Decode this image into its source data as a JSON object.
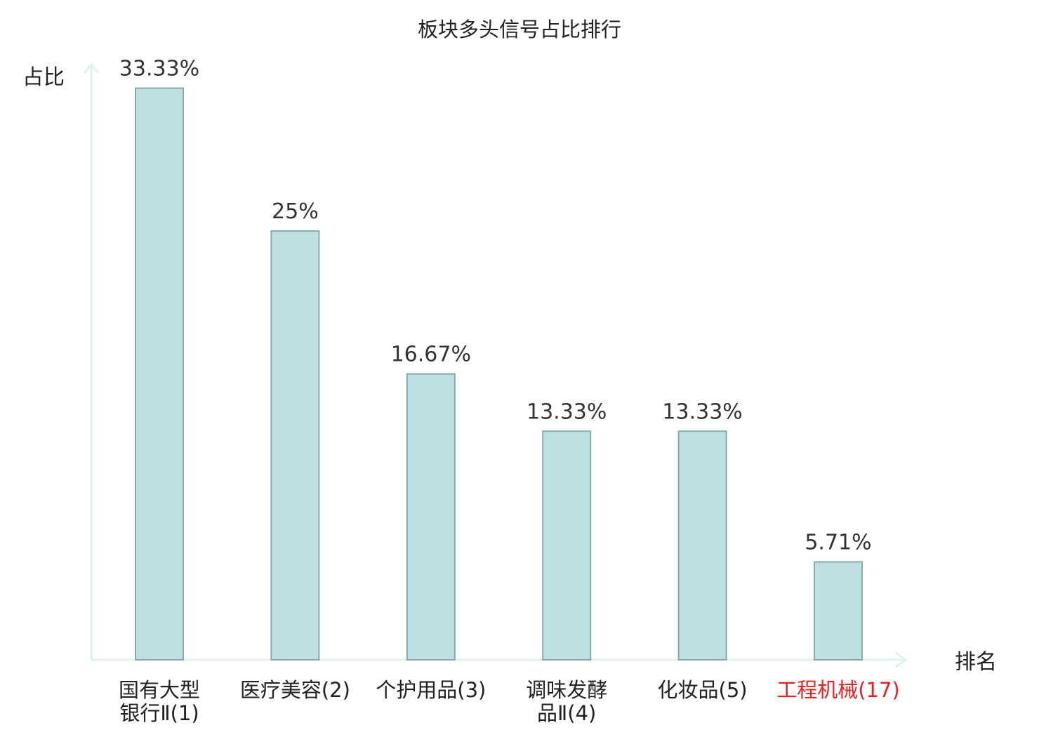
{
  "chart_data": {
    "type": "bar",
    "title": "板块多头信号占比排行",
    "xlabel": "排名",
    "ylabel": "占比",
    "ylim": [
      0,
      34.5
    ],
    "grid": false,
    "categories": [
      {
        "lines": [
          "国有大型",
          "银行Ⅱ(1)"
        ],
        "highlight": false
      },
      {
        "lines": [
          "医疗美容(2)"
        ],
        "highlight": false
      },
      {
        "lines": [
          "个护用品(3)"
        ],
        "highlight": false
      },
      {
        "lines": [
          "调味发酵",
          "品Ⅱ(4)"
        ],
        "highlight": false
      },
      {
        "lines": [
          "化妆品(5)"
        ],
        "highlight": false
      },
      {
        "lines": [
          "工程机械(17)"
        ],
        "highlight": true
      }
    ],
    "values": [
      33.33,
      25,
      16.67,
      13.33,
      13.33,
      5.71
    ],
    "value_labels": [
      "33.33%",
      "25%",
      "16.67%",
      "13.33%",
      "13.33%",
      "5.71%"
    ],
    "colors": {
      "bar_fill": "#bde0e3",
      "bar_stroke": "#8aa9ab",
      "axis": "#e0f2f0",
      "highlight_text": "#e8201f",
      "text": "#222222"
    }
  }
}
